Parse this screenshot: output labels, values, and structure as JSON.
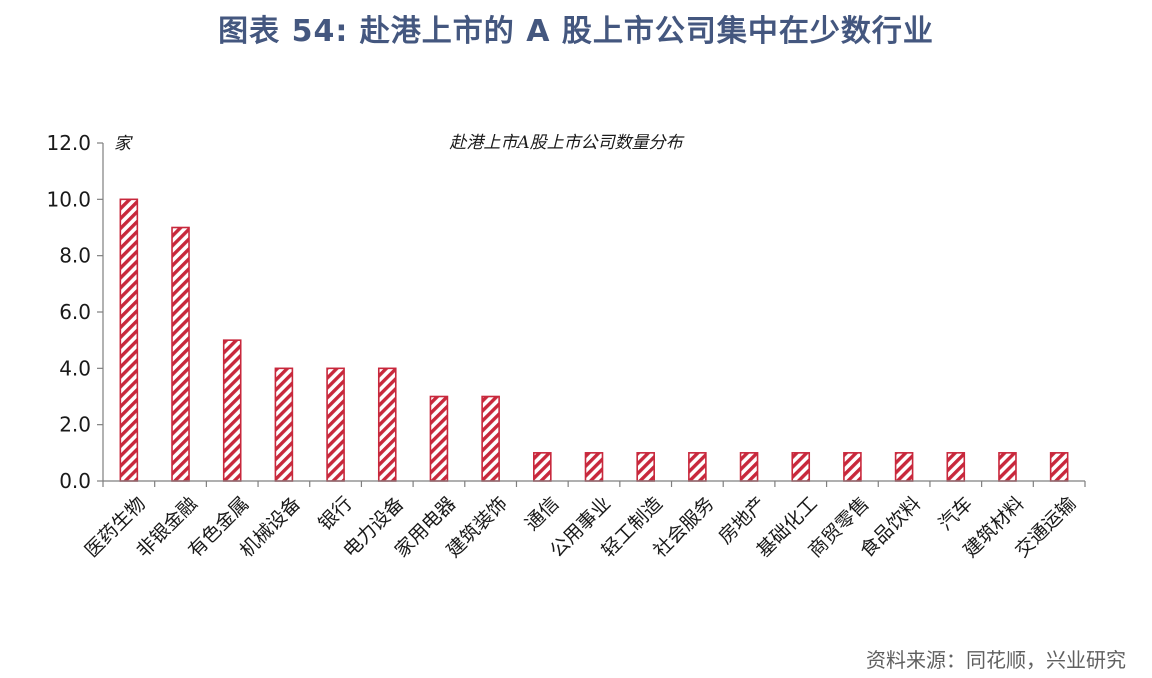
{
  "figure": {
    "title": "图表 54: 赴港上市的 A 股上市公司集中在少数行业",
    "source": "资料来源：同花顺，兴业研究"
  },
  "colors": {
    "title": "#44577f",
    "bar": "#c8283c",
    "axis": "#7f7f7f"
  },
  "chart_data": {
    "type": "bar",
    "title": "赴港上市A股上市公司数量分布",
    "unit": "家",
    "xlabel": "",
    "ylabel": "",
    "ylim": [
      0,
      12
    ],
    "yticks": [
      "0.0",
      "2.0",
      "4.0",
      "6.0",
      "8.0",
      "10.0",
      "12.0"
    ],
    "grid": false,
    "legend": "none",
    "bar_pattern": "diagonal-hatch",
    "categories": [
      "医药生物",
      "非银金融",
      "有色金属",
      "机械设备",
      "银行",
      "电力设备",
      "家用电器",
      "建筑装饰",
      "通信",
      "公用事业",
      "轻工制造",
      "社会服务",
      "房地产",
      "基础化工",
      "商贸零售",
      "食品饮料",
      "汽车",
      "建筑材料",
      "交通运输"
    ],
    "values": [
      10,
      9,
      5,
      4,
      4,
      4,
      3,
      3,
      1,
      1,
      1,
      1,
      1,
      1,
      1,
      1,
      1,
      1,
      1
    ]
  }
}
